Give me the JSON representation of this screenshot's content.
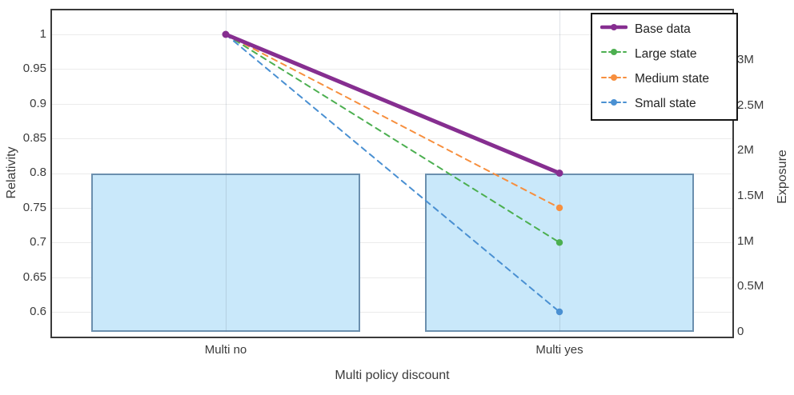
{
  "chart_data": {
    "type": "line",
    "subtype": "dual-axis line + bar (relativity curves over exposure bars)",
    "title": "",
    "categories": [
      "Multi no",
      "Multi yes"
    ],
    "x_axis": {
      "label": "Multi policy discount"
    },
    "y_left": {
      "label": "Relativity",
      "tick_values": [
        1,
        0.95,
        0.9,
        0.85,
        0.8,
        0.75,
        0.7,
        0.65,
        0.6
      ],
      "tick_labels": [
        "1",
        "0.95",
        "0.9",
        "0.85",
        "0.8",
        "0.75",
        "0.7",
        "0.65",
        "0.6"
      ],
      "range": [
        0.565,
        1.035
      ],
      "grid": true
    },
    "y_right": {
      "label": "Exposure",
      "tick_values_millions": [
        3,
        2.5,
        2,
        1.5,
        1,
        0.5,
        0
      ],
      "tick_labels": [
        "3M",
        "2.5M",
        "2M",
        "1.5M",
        "1M",
        "0.5M",
        "0"
      ],
      "range_millions": [
        0,
        3.6
      ],
      "grid": false
    },
    "bars": {
      "name": "Exposure",
      "values_millions": [
        1.75,
        1.75
      ],
      "fill": "#c9e8fa",
      "border": "#6b8fae"
    },
    "series": [
      {
        "name": "Base data",
        "values": [
          1.0,
          0.8
        ],
        "color": "#862e90",
        "style": "solid-thick"
      },
      {
        "name": "Large state",
        "values": [
          1.0,
          0.7
        ],
        "color": "#4caf50",
        "style": "dashed"
      },
      {
        "name": "Medium state",
        "values": [
          1.0,
          0.75
        ],
        "color": "#f78f3e",
        "style": "dashed"
      },
      {
        "name": "Small state",
        "values": [
          1.0,
          0.6
        ],
        "color": "#4a90d2",
        "style": "dashed"
      }
    ],
    "legend": {
      "position": "top-right",
      "order": [
        "Base data",
        "Large state",
        "Medium state",
        "Small state"
      ]
    },
    "colors": {
      "plot_border": "#3a3a3a",
      "gridline": "#ebebeb",
      "text": "#3b3b3b"
    }
  }
}
